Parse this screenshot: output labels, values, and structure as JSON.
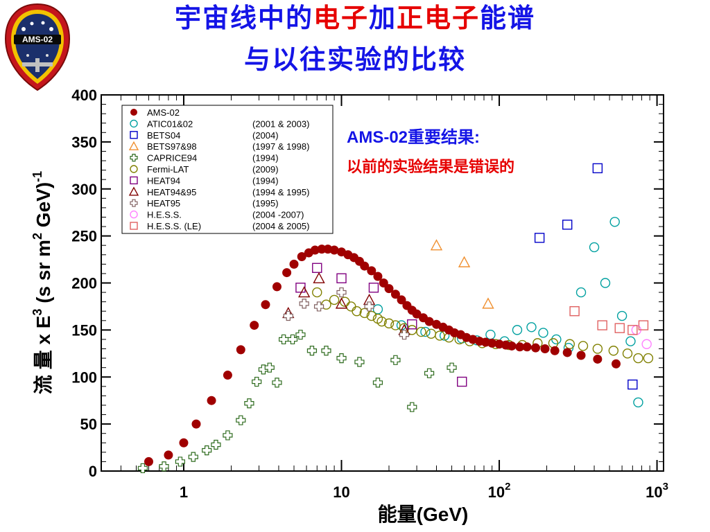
{
  "slide": {
    "title_parts": [
      {
        "text": "宇宙线中的",
        "color": "blue"
      },
      {
        "text": "电子",
        "color": "red"
      },
      {
        "text": "加",
        "color": "blue"
      },
      {
        "text": "正",
        "color": "red"
      },
      {
        "text": "电子",
        "color": "red"
      },
      {
        "text": "能谱",
        "color": "blue"
      }
    ],
    "subtitle": "与以往实验的比较",
    "logo_text": "AMS-02",
    "logo_ring_text": "Alpha Magnetic Spectrometer",
    "annotation_line1": "AMS-02重要结果:",
    "annotation_line2": "以前的实验结果是错误的"
  },
  "chart_data": {
    "type": "scatter",
    "x_scale": "log",
    "xlim": [
      0.3,
      1100
    ],
    "ylim": [
      0,
      400
    ],
    "xlabel": "能量(GeV)",
    "ylabel_parts": {
      "main": "流 量 x E",
      "exp1": "3",
      "mid": " (s sr m",
      "exp2": "2",
      "end": " GeV)",
      "exp3": "-1"
    },
    "y_ticks": [
      0,
      50,
      100,
      150,
      200,
      250,
      300,
      350,
      400
    ],
    "x_ticks": [
      {
        "value": 1,
        "base": "1",
        "exp": ""
      },
      {
        "value": 10,
        "base": "10",
        "exp": ""
      },
      {
        "value": 100,
        "base": "10",
        "exp": "2"
      },
      {
        "value": 1000,
        "base": "10",
        "exp": "3"
      }
    ],
    "legend_position": "top-left",
    "series": [
      {
        "name": "AMS-02",
        "years": "",
        "marker": "dot",
        "color": "#a00000",
        "points": [
          [
            0.6,
            10
          ],
          [
            0.8,
            17
          ],
          [
            1,
            30
          ],
          [
            1.2,
            50
          ],
          [
            1.5,
            75
          ],
          [
            1.9,
            102
          ],
          [
            2.3,
            129
          ],
          [
            2.8,
            155
          ],
          [
            3.3,
            177
          ],
          [
            3.9,
            196
          ],
          [
            4.5,
            211
          ],
          [
            5.0,
            220
          ],
          [
            5.6,
            228
          ],
          [
            6.2,
            232
          ],
          [
            6.8,
            235
          ],
          [
            7.5,
            236
          ],
          [
            8.2,
            236
          ],
          [
            9,
            235
          ],
          [
            10,
            233
          ],
          [
            11,
            230
          ],
          [
            12,
            227
          ],
          [
            13,
            223
          ],
          [
            14,
            218
          ],
          [
            15.5,
            213
          ],
          [
            17,
            207
          ],
          [
            18.5,
            200
          ],
          [
            20,
            194
          ],
          [
            22,
            188
          ],
          [
            24,
            182
          ],
          [
            26,
            176
          ],
          [
            28,
            171
          ],
          [
            30,
            167
          ],
          [
            33,
            163
          ],
          [
            36,
            159
          ],
          [
            40,
            156
          ],
          [
            44,
            153
          ],
          [
            48,
            150
          ],
          [
            52,
            147
          ],
          [
            57,
            145
          ],
          [
            62,
            142
          ],
          [
            68,
            140
          ],
          [
            75,
            138
          ],
          [
            82,
            137
          ],
          [
            90,
            136
          ],
          [
            100,
            135
          ],
          [
            110,
            134
          ],
          [
            120,
            133
          ],
          [
            135,
            132
          ],
          [
            150,
            132
          ],
          [
            170,
            131
          ],
          [
            195,
            130
          ],
          [
            225,
            128
          ],
          [
            270,
            126
          ],
          [
            330,
            123
          ],
          [
            420,
            119
          ],
          [
            550,
            114
          ]
        ]
      },
      {
        "name": "ATIC01&02",
        "years": "(2001 & 2003)",
        "marker": "circle",
        "color": "#00a0a0",
        "points": [
          [
            17,
            172
          ],
          [
            24,
            155
          ],
          [
            34,
            148
          ],
          [
            45,
            144
          ],
          [
            58,
            141
          ],
          [
            72,
            139
          ],
          [
            88,
            145
          ],
          [
            108,
            138
          ],
          [
            130,
            150
          ],
          [
            160,
            153
          ],
          [
            190,
            147
          ],
          [
            230,
            140
          ],
          [
            275,
            131
          ],
          [
            330,
            190
          ],
          [
            400,
            238
          ],
          [
            470,
            200
          ],
          [
            540,
            265
          ],
          [
            600,
            165
          ],
          [
            680,
            138
          ],
          [
            760,
            73
          ]
        ]
      },
      {
        "name": "BETS04",
        "years": "(2004)",
        "marker": "square",
        "color": "#0000c8",
        "points": [
          [
            180,
            248
          ],
          [
            270,
            262
          ],
          [
            420,
            322
          ],
          [
            700,
            92
          ]
        ]
      },
      {
        "name": "BETS97&98",
        "years": "(1997 & 1998)",
        "marker": "triangle",
        "color": "#f09030",
        "points": [
          [
            40,
            240
          ],
          [
            60,
            222
          ],
          [
            85,
            178
          ]
        ]
      },
      {
        "name": "CAPRICE94",
        "years": "(1994)",
        "marker": "cross",
        "color": "#2e6b1e",
        "points": [
          [
            0.55,
            3
          ],
          [
            0.75,
            5
          ],
          [
            0.95,
            10
          ],
          [
            1.15,
            15
          ],
          [
            1.4,
            22
          ],
          [
            1.6,
            28
          ],
          [
            1.9,
            38
          ],
          [
            2.3,
            54
          ],
          [
            2.6,
            72
          ],
          [
            2.9,
            95
          ],
          [
            3.2,
            108
          ],
          [
            3.5,
            110
          ],
          [
            3.9,
            94
          ],
          [
            4.3,
            140
          ],
          [
            4.9,
            140
          ],
          [
            5.5,
            145
          ],
          [
            6.5,
            128
          ],
          [
            8,
            128
          ],
          [
            10,
            120
          ],
          [
            13,
            116
          ],
          [
            17,
            94
          ],
          [
            22,
            118
          ],
          [
            28,
            68
          ],
          [
            36,
            104
          ],
          [
            50,
            110
          ]
        ]
      },
      {
        "name": "Fermi-LAT",
        "years": "(2009)",
        "marker": "circle",
        "color": "#808000",
        "points": [
          [
            7,
            190
          ],
          [
            8,
            177
          ],
          [
            9,
            182
          ],
          [
            10.5,
            180
          ],
          [
            11.5,
            175
          ],
          [
            12.5,
            170
          ],
          [
            14,
            168
          ],
          [
            15.5,
            165
          ],
          [
            17,
            162
          ],
          [
            18,
            159
          ],
          [
            20,
            157
          ],
          [
            22,
            155
          ],
          [
            25,
            152
          ],
          [
            28,
            150
          ],
          [
            32,
            148
          ],
          [
            37,
            146
          ],
          [
            42,
            144
          ],
          [
            48,
            142
          ],
          [
            56,
            140
          ],
          [
            65,
            138
          ],
          [
            78,
            136
          ],
          [
            95,
            135
          ],
          [
            115,
            134
          ],
          [
            140,
            134
          ],
          [
            175,
            136
          ],
          [
            220,
            136
          ],
          [
            280,
            135
          ],
          [
            340,
            133
          ],
          [
            420,
            130
          ],
          [
            530,
            128
          ],
          [
            650,
            125
          ],
          [
            760,
            120
          ],
          [
            880,
            120
          ]
        ]
      },
      {
        "name": "HEAT94",
        "years": "(1994)",
        "marker": "square",
        "color": "#800080",
        "points": [
          [
            5.5,
            195
          ],
          [
            7,
            216
          ],
          [
            10,
            205
          ],
          [
            16,
            195
          ],
          [
            28,
            156
          ],
          [
            58,
            95
          ]
        ]
      },
      {
        "name": "HEAT94&95",
        "years": "(1994 & 1995)",
        "marker": "triangle",
        "color": "#800000",
        "points": [
          [
            4.6,
            168
          ],
          [
            5.8,
            190
          ],
          [
            7.2,
            205
          ],
          [
            10,
            178
          ],
          [
            15,
            182
          ],
          [
            25,
            150
          ]
        ]
      },
      {
        "name": "HEAT95",
        "years": "(1995)",
        "marker": "cross",
        "color": "#806060",
        "points": [
          [
            4.6,
            165
          ],
          [
            5.8,
            178
          ],
          [
            7.2,
            175
          ],
          [
            10,
            190
          ],
          [
            15,
            175
          ],
          [
            25,
            145
          ]
        ]
      },
      {
        "name": "H.E.S.S.",
        "years": "(2004 -2007)",
        "marker": "circle",
        "color": "#ff80ff",
        "points": [
          [
            740,
            150
          ],
          [
            860,
            135
          ]
        ]
      },
      {
        "name": "H.E.S.S. (LE)",
        "years": "(2004 & 2005)",
        "marker": "square",
        "color": "#e06060",
        "points": [
          [
            300,
            170
          ],
          [
            450,
            155
          ],
          [
            580,
            152
          ],
          [
            700,
            150
          ],
          [
            820,
            155
          ]
        ]
      }
    ]
  }
}
